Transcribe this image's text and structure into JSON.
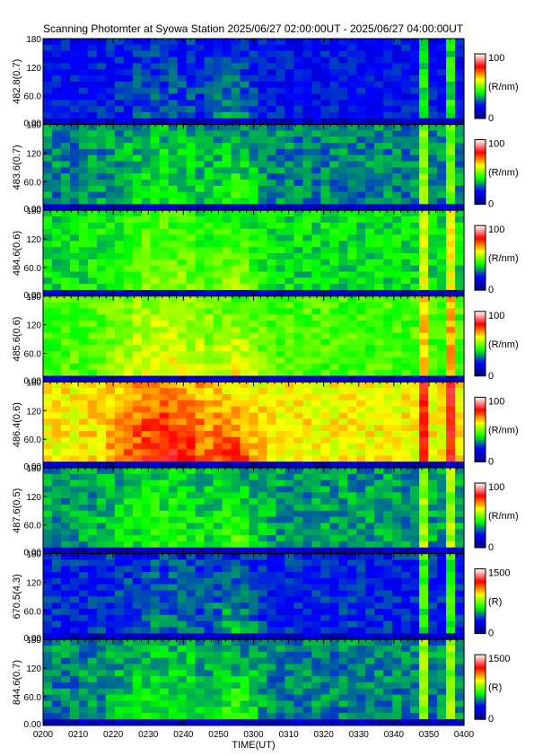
{
  "title": "Scanning Photomter at Syowa Station 2025/06/27 02:00:00UT - 2025/06/27 04:00:00UT",
  "chart_data": {
    "type": "heatmap",
    "xlabel": "TIME(UT)",
    "xticks": [
      "0200",
      "0210",
      "0220",
      "0230",
      "0240",
      "0250",
      "0300",
      "0310",
      "0320",
      "0330",
      "0340",
      "0350",
      "0400"
    ],
    "xlim": [
      "0200",
      "0400"
    ],
    "ylim": [
      0,
      180
    ],
    "yticks": [
      "0.00",
      "60.0",
      "120",
      "180"
    ],
    "colormap": [
      "#000080",
      "#0000ff",
      "#00ff00",
      "#ffff00",
      "#ff0000",
      "#ffffff"
    ],
    "panels": [
      {
        "ylabel": "482.8(0.7)",
        "cb_max": "100",
        "cb_min": "0",
        "cb_unit": "(R/nm)",
        "level": 0.2
      },
      {
        "ylabel": "483.6(0.7)",
        "cb_max": "100",
        "cb_min": "0",
        "cb_unit": "(R/nm)",
        "level": 0.3
      },
      {
        "ylabel": "484.6(0.6)",
        "cb_max": "100",
        "cb_min": "0",
        "cb_unit": "(R/nm)",
        "level": 0.38
      },
      {
        "ylabel": "485.6(0.6)",
        "cb_max": "100",
        "cb_min": "0",
        "cb_unit": "(R/nm)",
        "level": 0.45
      },
      {
        "ylabel": "486.4(0.6)",
        "cb_max": "100",
        "cb_min": "0",
        "cb_unit": "(R/nm)",
        "level": 0.6
      },
      {
        "ylabel": "487.6(0.5)",
        "cb_max": "100",
        "cb_min": "0",
        "cb_unit": "(R/nm)",
        "level": 0.32
      },
      {
        "ylabel": "670.5(4.3)",
        "cb_max": "1500",
        "cb_min": "0",
        "cb_unit": "(R)",
        "level": 0.22
      },
      {
        "ylabel": "844.6(0.7)",
        "cb_max": "1500",
        "cb_min": "0",
        "cb_unit": "(R)",
        "level": 0.3
      }
    ]
  }
}
